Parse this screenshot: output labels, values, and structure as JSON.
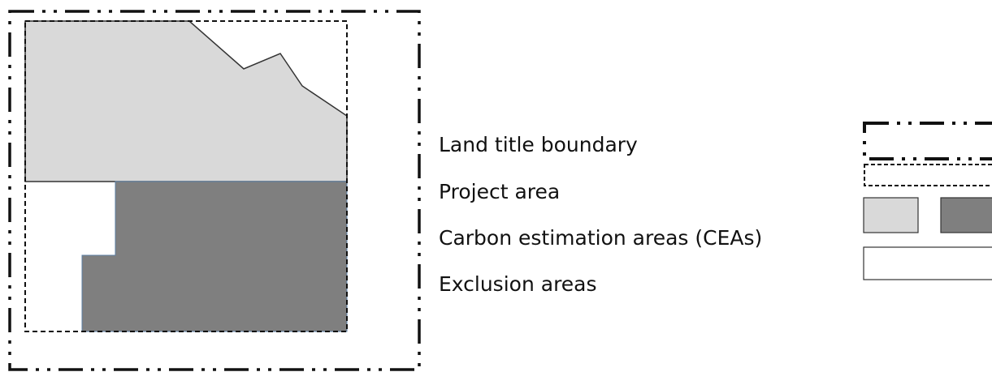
{
  "legend": {
    "items": [
      {
        "label": "Land title boundary"
      },
      {
        "label": "Project area"
      },
      {
        "label": "Carbon estimation areas (CEAs)"
      },
      {
        "label": "Exclusion areas"
      }
    ]
  }
}
